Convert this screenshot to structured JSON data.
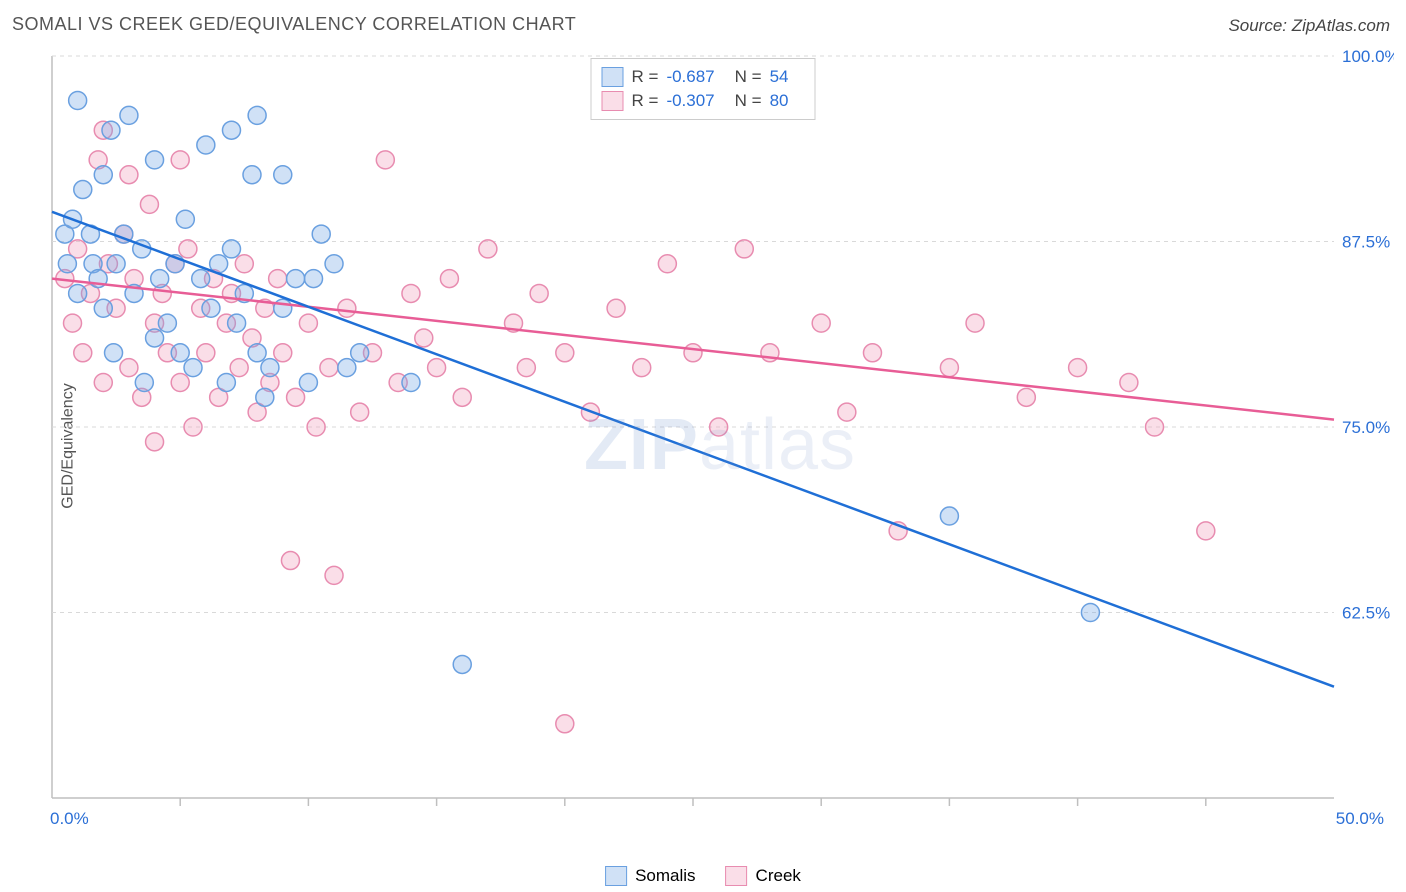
{
  "title": "SOMALI VS CREEK GED/EQUIVALENCY CORRELATION CHART",
  "source": "Source: ZipAtlas.com",
  "yaxis_label": "GED/Equivalency",
  "watermark_bold": "ZIP",
  "watermark_light": "atlas",
  "chart": {
    "type": "scatter",
    "background_color": "#ffffff",
    "plot_border_color": "#bfbfbf",
    "grid_color": "#d9d9d9",
    "grid_dash": "4,4",
    "xlim": [
      0,
      50
    ],
    "ylim": [
      50,
      100
    ],
    "ytick_positions": [
      62.5,
      75.0,
      87.5,
      100.0
    ],
    "ytick_labels": [
      "62.5%",
      "75.0%",
      "87.5%",
      "100.0%"
    ],
    "xtick_positions": [
      5,
      10,
      15,
      20,
      25,
      30,
      35,
      40,
      45
    ],
    "xtick_labels_shown": {
      "min": "0.0%",
      "max": "50.0%"
    },
    "tick_label_color": "#2b6fd6",
    "tick_label_fontsize": 17,
    "point_radius": 9,
    "point_stroke_width": 1.5,
    "trend_line_width": 2.5
  },
  "series": {
    "somalis": {
      "label": "Somalis",
      "fill_color": "rgba(120,170,230,0.35)",
      "stroke_color": "#6aa0e0",
      "line_color": "#1f6fd6",
      "stats": {
        "R": "-0.687",
        "N": "54"
      },
      "trend": {
        "x1": 0,
        "y1": 89.5,
        "x2": 50,
        "y2": 57.5
      },
      "points": [
        [
          0.5,
          88
        ],
        [
          0.6,
          86
        ],
        [
          0.8,
          89
        ],
        [
          1.0,
          84
        ],
        [
          1.0,
          97
        ],
        [
          1.2,
          91
        ],
        [
          1.5,
          88
        ],
        [
          1.6,
          86
        ],
        [
          1.8,
          85
        ],
        [
          2.0,
          92
        ],
        [
          2.0,
          83
        ],
        [
          2.3,
          95
        ],
        [
          2.4,
          80
        ],
        [
          2.5,
          86
        ],
        [
          2.8,
          88
        ],
        [
          3.0,
          96
        ],
        [
          3.2,
          84
        ],
        [
          3.5,
          87
        ],
        [
          3.6,
          78
        ],
        [
          4.0,
          93
        ],
        [
          4.2,
          85
        ],
        [
          4.5,
          82
        ],
        [
          4.8,
          86
        ],
        [
          5.0,
          80
        ],
        [
          5.2,
          89
        ],
        [
          5.5,
          79
        ],
        [
          5.8,
          85
        ],
        [
          6.0,
          94
        ],
        [
          6.2,
          83
        ],
        [
          6.5,
          86
        ],
        [
          6.8,
          78
        ],
        [
          7.0,
          87
        ],
        [
          7.2,
          82
        ],
        [
          7.5,
          84
        ],
        [
          7.8,
          92
        ],
        [
          8.0,
          80
        ],
        [
          8.0,
          96
        ],
        [
          8.3,
          77
        ],
        [
          8.5,
          79
        ],
        [
          9.0,
          92
        ],
        [
          9.0,
          83
        ],
        [
          9.5,
          85
        ],
        [
          10.0,
          78
        ],
        [
          10.2,
          85
        ],
        [
          10.5,
          88
        ],
        [
          11.0,
          86
        ],
        [
          11.5,
          79
        ],
        [
          12.0,
          80
        ],
        [
          14.0,
          78
        ],
        [
          16.0,
          59
        ],
        [
          35.0,
          69
        ],
        [
          40.5,
          62.5
        ],
        [
          7.0,
          95
        ],
        [
          4.0,
          81
        ]
      ]
    },
    "creek": {
      "label": "Creek",
      "fill_color": "rgba(240,160,190,0.35)",
      "stroke_color": "#e88cb0",
      "line_color": "#e85d96",
      "stats": {
        "R": "-0.307",
        "N": "80"
      },
      "trend": {
        "x1": 0,
        "y1": 85,
        "x2": 50,
        "y2": 75.5
      },
      "points": [
        [
          0.5,
          85
        ],
        [
          0.8,
          82
        ],
        [
          1.0,
          87
        ],
        [
          1.2,
          80
        ],
        [
          1.5,
          84
        ],
        [
          1.8,
          93
        ],
        [
          2.0,
          78
        ],
        [
          2.2,
          86
        ],
        [
          2.5,
          83
        ],
        [
          2.8,
          88
        ],
        [
          3.0,
          79
        ],
        [
          3.2,
          85
        ],
        [
          3.5,
          77
        ],
        [
          3.8,
          90
        ],
        [
          4.0,
          82
        ],
        [
          4.3,
          84
        ],
        [
          4.5,
          80
        ],
        [
          4.8,
          86
        ],
        [
          5.0,
          78
        ],
        [
          5.3,
          87
        ],
        [
          5.5,
          75
        ],
        [
          5.8,
          83
        ],
        [
          6.0,
          80
        ],
        [
          6.3,
          85
        ],
        [
          6.5,
          77
        ],
        [
          6.8,
          82
        ],
        [
          7.0,
          84
        ],
        [
          7.3,
          79
        ],
        [
          7.5,
          86
        ],
        [
          7.8,
          81
        ],
        [
          8.0,
          76
        ],
        [
          8.3,
          83
        ],
        [
          8.5,
          78
        ],
        [
          8.8,
          85
        ],
        [
          9.0,
          80
        ],
        [
          9.3,
          66
        ],
        [
          9.5,
          77
        ],
        [
          10.0,
          82
        ],
        [
          10.3,
          75
        ],
        [
          10.8,
          79
        ],
        [
          11.0,
          65
        ],
        [
          11.5,
          83
        ],
        [
          12.0,
          76
        ],
        [
          12.5,
          80
        ],
        [
          13.0,
          93
        ],
        [
          13.5,
          78
        ],
        [
          14.0,
          84
        ],
        [
          14.5,
          81
        ],
        [
          15.0,
          79
        ],
        [
          15.5,
          85
        ],
        [
          16.0,
          77
        ],
        [
          17.0,
          87
        ],
        [
          18.0,
          82
        ],
        [
          18.5,
          79
        ],
        [
          19.0,
          84
        ],
        [
          20.0,
          80
        ],
        [
          20.0,
          55
        ],
        [
          21.0,
          76
        ],
        [
          22.0,
          83
        ],
        [
          23.0,
          79
        ],
        [
          24.0,
          86
        ],
        [
          25.0,
          80
        ],
        [
          26.0,
          75
        ],
        [
          27.0,
          87
        ],
        [
          28.0,
          80
        ],
        [
          30.0,
          82
        ],
        [
          31.0,
          76
        ],
        [
          32.0,
          80
        ],
        [
          33.0,
          68
        ],
        [
          35.0,
          79
        ],
        [
          36.0,
          82
        ],
        [
          38.0,
          77
        ],
        [
          40.0,
          79
        ],
        [
          42.0,
          78
        ],
        [
          43.0,
          75
        ],
        [
          45.0,
          68
        ],
        [
          2.0,
          95
        ],
        [
          3.0,
          92
        ],
        [
          5.0,
          93
        ],
        [
          4.0,
          74
        ]
      ]
    }
  },
  "legend_top": {
    "rows": [
      {
        "swatch_series": "somalis",
        "r_label": "R =",
        "r_val": "-0.687",
        "n_label": "N =",
        "n_val": "54"
      },
      {
        "swatch_series": "creek",
        "r_label": "R =",
        "r_val": "-0.307",
        "n_label": "N =",
        "n_val": "80"
      }
    ]
  },
  "legend_bottom": {
    "items": [
      {
        "series": "somalis",
        "label": "Somalis"
      },
      {
        "series": "creek",
        "label": "Creek"
      }
    ]
  }
}
